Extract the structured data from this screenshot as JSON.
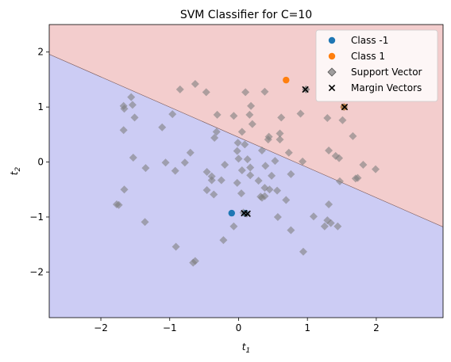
{
  "chart_data": {
    "type": "scatter",
    "title": "SVM Classifier for C=10",
    "xlabel": "t",
    "xlabel_sub": "1",
    "ylabel": "t",
    "ylabel_sub": "2",
    "xlim": [
      -2.75,
      2.97
    ],
    "ylim": [
      -2.83,
      2.5
    ],
    "xticks": [
      -2,
      -1,
      0,
      1,
      2
    ],
    "yticks": [
      -2,
      -1,
      0,
      1,
      2
    ],
    "xtick_labels": [
      "−2",
      "−1",
      "0",
      "1",
      "2"
    ],
    "ytick_labels": [
      "−2",
      "−1",
      "0",
      "1",
      "2"
    ],
    "decision_boundary": {
      "slope": -0.549,
      "intercept": 0.45
    },
    "regions": {
      "above_color": "#f3cdcd",
      "below_color": "#ccccf4",
      "boundary_color": "#7a5a5a"
    },
    "legend": {
      "position": "top-right",
      "entries": [
        "Class -1",
        "Class 1",
        "Support Vector",
        "Margin Vectors"
      ]
    },
    "series": [
      {
        "name": "Class -1",
        "marker": "circle",
        "color": "#1f77b4",
        "points": [
          [
            -0.1,
            -0.93
          ],
          [
            0.1,
            -0.93
          ]
        ]
      },
      {
        "name": "Class 1",
        "marker": "circle",
        "color": "#ff7f0e",
        "points": [
          [
            0.69,
            1.49
          ],
          [
            1.53,
            1.0
          ]
        ]
      },
      {
        "name": "Support Vector",
        "marker": "diamond",
        "color": "#7f7f7f",
        "points": [
          [
            -0.63,
            1.42
          ],
          [
            -0.85,
            1.32
          ],
          [
            -0.47,
            1.27
          ],
          [
            0.1,
            1.27
          ],
          [
            0.38,
            1.28
          ],
          [
            0.98,
            1.32
          ],
          [
            -1.56,
            1.18
          ],
          [
            -1.67,
            1.02
          ],
          [
            -1.54,
            1.04
          ],
          [
            -1.66,
            0.97
          ],
          [
            -0.96,
            0.87
          ],
          [
            -1.51,
            0.81
          ],
          [
            -1.11,
            0.63
          ],
          [
            -1.67,
            0.58
          ],
          [
            0.18,
            1.02
          ],
          [
            0.62,
            0.81
          ],
          [
            0.9,
            0.88
          ],
          [
            1.29,
            0.8
          ],
          [
            1.51,
            0.76
          ],
          [
            1.66,
            0.47
          ],
          [
            1.31,
            0.21
          ],
          [
            1.41,
            0.11
          ],
          [
            1.46,
            0.07
          ],
          [
            1.81,
            -0.05
          ],
          [
            1.99,
            -0.13
          ],
          [
            1.73,
            -0.29
          ],
          [
            1.7,
            -0.3
          ],
          [
            -1.53,
            0.08
          ],
          [
            -1.35,
            -0.11
          ],
          [
            -1.06,
            -0.01
          ],
          [
            1.47,
            -0.35
          ],
          [
            -1.66,
            -0.5
          ],
          [
            -1.77,
            -0.77
          ],
          [
            -1.74,
            -0.78
          ],
          [
            -1.36,
            -1.09
          ],
          [
            1.31,
            -0.77
          ],
          [
            0.57,
            -1.0
          ],
          [
            1.09,
            -0.99
          ],
          [
            1.29,
            -1.06
          ],
          [
            1.34,
            -1.11
          ],
          [
            1.25,
            -1.17
          ],
          [
            1.44,
            -1.17
          ],
          [
            0.76,
            -1.24
          ],
          [
            -0.07,
            -1.17
          ],
          [
            -0.22,
            -1.42
          ],
          [
            -0.91,
            -1.54
          ],
          [
            0.94,
            -1.63
          ],
          [
            -0.63,
            -1.8
          ],
          [
            -0.66,
            -1.83
          ],
          [
            -0.31,
            0.86
          ],
          [
            -0.07,
            0.84
          ],
          [
            0.16,
            0.86
          ],
          [
            0.2,
            0.69
          ],
          [
            0.05,
            0.55
          ],
          [
            -0.32,
            0.55
          ],
          [
            0.44,
            0.46
          ],
          [
            0.43,
            0.41
          ],
          [
            -0.35,
            0.44
          ],
          [
            0.6,
            0.41
          ],
          [
            0.6,
            0.52
          ],
          [
            -0.01,
            0.35
          ],
          [
            0.09,
            0.32
          ],
          [
            -0.02,
            0.2
          ],
          [
            0.34,
            0.21
          ],
          [
            0.73,
            0.17
          ],
          [
            -0.7,
            0.17
          ],
          [
            0.0,
            0.06
          ],
          [
            0.93,
            0.01
          ],
          [
            0.13,
            0.05
          ],
          [
            0.53,
            0.02
          ],
          [
            -0.78,
            -0.01
          ],
          [
            -0.2,
            -0.05
          ],
          [
            0.39,
            -0.07
          ],
          [
            0.17,
            -0.1
          ],
          [
            -0.92,
            -0.16
          ],
          [
            -0.46,
            -0.18
          ],
          [
            0.05,
            -0.15
          ],
          [
            0.76,
            -0.22
          ],
          [
            -0.39,
            -0.26
          ],
          [
            0.17,
            -0.24
          ],
          [
            0.48,
            -0.25
          ],
          [
            -0.39,
            -0.33
          ],
          [
            -0.25,
            -0.33
          ],
          [
            0.29,
            -0.34
          ],
          [
            -0.02,
            -0.38
          ],
          [
            0.38,
            -0.47
          ],
          [
            0.45,
            -0.5
          ],
          [
            -0.46,
            -0.51
          ],
          [
            0.04,
            -0.57
          ],
          [
            0.56,
            -0.52
          ],
          [
            -0.36,
            -0.59
          ],
          [
            0.32,
            -0.63
          ],
          [
            0.38,
            -0.62
          ],
          [
            0.34,
            -0.65
          ],
          [
            0.69,
            -0.69
          ],
          [
            0.07,
            -0.92
          ],
          [
            0.12,
            -0.94
          ],
          [
            1.53,
            1.0
          ],
          [
            0.98,
            1.32
          ]
        ]
      },
      {
        "name": "Margin Vectors",
        "marker": "x",
        "color": "#000000",
        "points": [
          [
            0.97,
            1.32
          ],
          [
            1.54,
            1.0
          ],
          [
            0.08,
            -0.93
          ],
          [
            0.13,
            -0.94
          ]
        ]
      }
    ]
  }
}
